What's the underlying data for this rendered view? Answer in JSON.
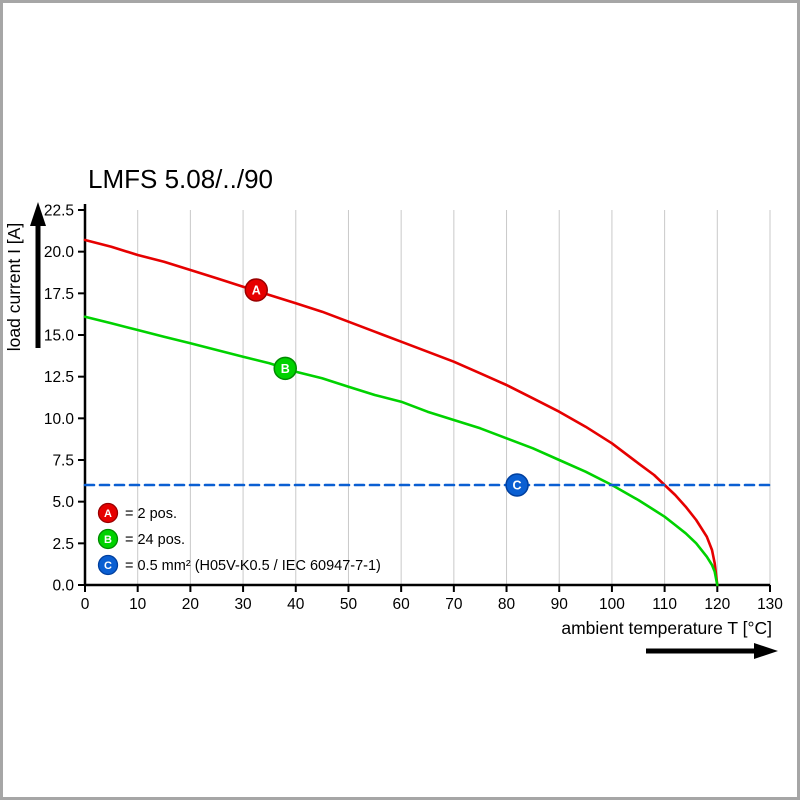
{
  "frame": {
    "border_color": "#a6a6a6"
  },
  "chart_data": {
    "type": "line",
    "title": "LMFS 5.08/../90",
    "xlabel": "ambient temperature T [°C]",
    "ylabel": "load current I [A]",
    "xlim": [
      0,
      130
    ],
    "ylim": [
      0,
      22.5
    ],
    "xticks": [
      0,
      10,
      20,
      30,
      40,
      50,
      60,
      70,
      80,
      90,
      100,
      110,
      120,
      130
    ],
    "yticks": [
      0,
      2.5,
      5,
      7.5,
      10,
      12.5,
      15,
      17.5,
      20,
      22.5
    ],
    "ytick_labels": [
      "0.0",
      "2.5",
      "5.0",
      "7.5",
      "10.0",
      "12.5",
      "15.0",
      "17.5",
      "20.0",
      "22.5"
    ],
    "grid": "vertical",
    "legend_position": "inside bottom-left",
    "axis_color": "#000000",
    "grid_color": "#c9c9c9",
    "series": [
      {
        "id": "A",
        "marker_letter": "A",
        "legend_label": "= 2 pos.",
        "style": "solid",
        "color": "#e60000",
        "marker_stroke": "#990000",
        "marker_at": [
          32.5,
          17.7
        ],
        "points": [
          [
            0,
            20.7
          ],
          [
            5,
            20.3
          ],
          [
            10,
            19.8
          ],
          [
            15,
            19.4
          ],
          [
            20,
            18.9
          ],
          [
            25,
            18.4
          ],
          [
            30,
            17.9
          ],
          [
            35,
            17.4
          ],
          [
            40,
            16.9
          ],
          [
            45,
            16.4
          ],
          [
            50,
            15.8
          ],
          [
            55,
            15.2
          ],
          [
            60,
            14.6
          ],
          [
            65,
            14.0
          ],
          [
            70,
            13.4
          ],
          [
            75,
            12.7
          ],
          [
            80,
            12.0
          ],
          [
            85,
            11.2
          ],
          [
            90,
            10.4
          ],
          [
            95,
            9.5
          ],
          [
            100,
            8.5
          ],
          [
            105,
            7.3
          ],
          [
            108,
            6.6
          ],
          [
            110,
            6.0
          ],
          [
            112,
            5.4
          ],
          [
            114,
            4.7
          ],
          [
            116,
            3.9
          ],
          [
            118,
            2.9
          ],
          [
            119,
            2.1
          ],
          [
            119.5,
            1.3
          ],
          [
            120,
            0
          ]
        ]
      },
      {
        "id": "B",
        "marker_letter": "B",
        "legend_label": "= 24 pos.",
        "style": "solid",
        "color": "#00d200",
        "marker_stroke": "#008a00",
        "marker_at": [
          38,
          13.0
        ],
        "points": [
          [
            0,
            16.1
          ],
          [
            5,
            15.7
          ],
          [
            10,
            15.3
          ],
          [
            15,
            14.9
          ],
          [
            20,
            14.5
          ],
          [
            25,
            14.1
          ],
          [
            30,
            13.7
          ],
          [
            35,
            13.3
          ],
          [
            40,
            12.8
          ],
          [
            45,
            12.4
          ],
          [
            50,
            11.9
          ],
          [
            55,
            11.4
          ],
          [
            60,
            11.0
          ],
          [
            65,
            10.4
          ],
          [
            70,
            9.9
          ],
          [
            75,
            9.4
          ],
          [
            80,
            8.8
          ],
          [
            85,
            8.2
          ],
          [
            90,
            7.5
          ],
          [
            95,
            6.8
          ],
          [
            100,
            6.0
          ],
          [
            105,
            5.1
          ],
          [
            108,
            4.5
          ],
          [
            110,
            4.1
          ],
          [
            112,
            3.6
          ],
          [
            114,
            3.1
          ],
          [
            116,
            2.5
          ],
          [
            118,
            1.7
          ],
          [
            119,
            1.2
          ],
          [
            119.5,
            0.8
          ],
          [
            120,
            0
          ]
        ]
      },
      {
        "id": "C",
        "marker_letter": "C",
        "legend_label": "= 0.5 mm² (H05V-K0.5 / IEC 60947-7-1)",
        "style": "dashed",
        "color": "#0a5fd2",
        "marker_stroke": "#003f9e",
        "marker_at": [
          82,
          6
        ],
        "points": [
          [
            0,
            6
          ],
          [
            130,
            6
          ]
        ]
      }
    ]
  }
}
